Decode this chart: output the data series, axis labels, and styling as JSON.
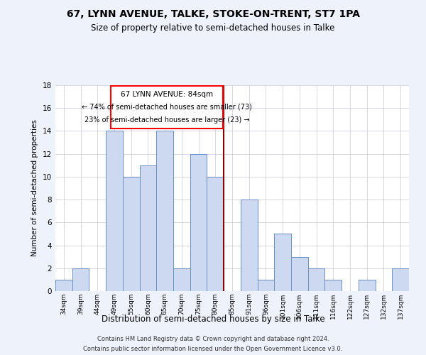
{
  "title": "67, LYNN AVENUE, TALKE, STOKE-ON-TRENT, ST7 1PA",
  "subtitle": "Size of property relative to semi-detached houses in Talke",
  "xlabel": "Distribution of semi-detached houses by size in Talke",
  "ylabel": "Number of semi-detached properties",
  "categories": [
    "34sqm",
    "39sqm",
    "44sqm",
    "49sqm",
    "55sqm",
    "60sqm",
    "65sqm",
    "70sqm",
    "75sqm",
    "80sqm",
    "85sqm",
    "91sqm",
    "96sqm",
    "101sqm",
    "106sqm",
    "111sqm",
    "116sqm",
    "122sqm",
    "127sqm",
    "132sqm",
    "137sqm"
  ],
  "values": [
    1,
    2,
    0,
    14,
    10,
    11,
    14,
    2,
    12,
    10,
    0,
    8,
    1,
    5,
    3,
    2,
    1,
    0,
    1,
    0,
    2
  ],
  "bar_color": "#ccd9f0",
  "bar_edge_color": "#6a90c8",
  "ylim": [
    0,
    18
  ],
  "yticks": [
    0,
    2,
    4,
    6,
    8,
    10,
    12,
    14,
    16,
    18
  ],
  "property_line_x": 9.5,
  "annotation_title": "67 LYNN AVENUE: 84sqm",
  "annotation_line1": "← 74% of semi-detached houses are smaller (73)",
  "annotation_line2": "23% of semi-detached houses are larger (23) →",
  "footer_line1": "Contains HM Land Registry data © Crown copyright and database right 2024.",
  "footer_line2": "Contains public sector information licensed under the Open Government Licence v3.0.",
  "bg_color": "#eef2fb",
  "plot_bg_color": "#ffffff",
  "grid_color": "#c8c8d8"
}
